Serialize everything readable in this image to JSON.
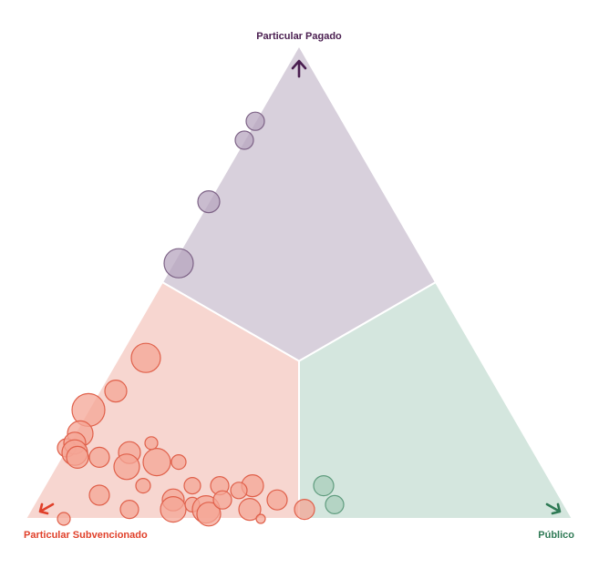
{
  "chart_data": {
    "type": "ternary-bubble",
    "title": "",
    "axes": {
      "top": {
        "label": "Particular Pagado",
        "color": "#4a1e50",
        "arrow_icon": "arrow-up-icon"
      },
      "left": {
        "label": "Particular Subvencionado",
        "color": "#e0402a",
        "arrow_icon": "arrow-down-left-icon"
      },
      "right": {
        "label": "Público",
        "color": "#2f7a55",
        "arrow_icon": "arrow-down-right-icon"
      }
    },
    "regions": [
      {
        "name": "Particular Pagado",
        "fill": "#d8d0dc"
      },
      {
        "name": "Particular Subvencionado",
        "fill": "#f7d6d0"
      },
      {
        "name": "Público",
        "fill": "#d4e6de"
      }
    ],
    "series": [
      {
        "group": "Particular Pagado",
        "fill": "#b7a6bf",
        "stroke": "#7d6286",
        "points": [
          {
            "pagado": 0.84,
            "subvencionado": 0.16,
            "publico": 0.0,
            "r": 10
          },
          {
            "pagado": 0.8,
            "subvencionado": 0.2,
            "publico": 0.0,
            "r": 10
          },
          {
            "pagado": 0.67,
            "subvencionado": 0.33,
            "publico": 0.0,
            "r": 12
          },
          {
            "pagado": 0.54,
            "subvencionado": 0.45,
            "publico": 0.01,
            "r": 16
          }
        ]
      },
      {
        "group": "Particular Subvencionado",
        "fill": "#f4a696",
        "stroke": "#e0604a",
        "points": [
          {
            "pagado": 0.34,
            "subvencionado": 0.61,
            "publico": 0.05,
            "r": 16
          },
          {
            "pagado": 0.27,
            "subvencionado": 0.7,
            "publico": 0.03,
            "r": 12
          },
          {
            "pagado": 0.23,
            "subvencionado": 0.77,
            "publico": 0.0,
            "r": 18
          },
          {
            "pagado": 0.18,
            "subvencionado": 0.81,
            "publico": 0.01,
            "r": 14
          },
          {
            "pagado": 0.15,
            "subvencionado": 0.85,
            "publico": 0.0,
            "r": 10
          },
          {
            "pagado": 0.16,
            "subvencionado": 0.83,
            "publico": 0.01,
            "r": 12
          },
          {
            "pagado": 0.14,
            "subvencionado": 0.84,
            "publico": 0.02,
            "r": 14
          },
          {
            "pagado": 0.13,
            "subvencionado": 0.84,
            "publico": 0.03,
            "r": 12
          },
          {
            "pagado": 0.13,
            "subvencionado": 0.8,
            "publico": 0.07,
            "r": 11
          },
          {
            "pagado": 0.14,
            "subvencionado": 0.74,
            "publico": 0.12,
            "r": 12
          },
          {
            "pagado": 0.11,
            "subvencionado": 0.76,
            "publico": 0.13,
            "r": 14
          },
          {
            "pagado": 0.12,
            "subvencionado": 0.7,
            "publico": 0.18,
            "r": 15
          },
          {
            "pagado": 0.16,
            "subvencionado": 0.69,
            "publico": 0.15,
            "r": 7
          },
          {
            "pagado": 0.12,
            "subvencionado": 0.66,
            "publico": 0.22,
            "r": 8
          },
          {
            "pagado": 0.07,
            "subvencionado": 0.75,
            "publico": 0.18,
            "r": 8
          },
          {
            "pagado": 0.07,
            "subvencionado": 0.66,
            "publico": 0.27,
            "r": 9
          },
          {
            "pagado": 0.07,
            "subvencionado": 0.55,
            "publico": 0.38,
            "r": 12
          },
          {
            "pagado": 0.07,
            "subvencionado": 0.61,
            "publico": 0.32,
            "r": 10
          },
          {
            "pagado": 0.06,
            "subvencionado": 0.58,
            "publico": 0.36,
            "r": 9
          },
          {
            "pagado": 0.05,
            "subvencionado": 0.84,
            "publico": 0.11,
            "r": 11
          },
          {
            "pagado": 0.02,
            "subvencionado": 0.8,
            "publico": 0.18,
            "r": 10
          },
          {
            "pagado": 0.04,
            "subvencionado": 0.71,
            "publico": 0.25,
            "r": 12
          },
          {
            "pagado": 0.02,
            "subvencionado": 0.72,
            "publico": 0.26,
            "r": 14
          },
          {
            "pagado": 0.03,
            "subvencionado": 0.68,
            "publico": 0.29,
            "r": 8
          },
          {
            "pagado": 0.02,
            "subvencionado": 0.66,
            "publico": 0.32,
            "r": 15
          },
          {
            "pagado": 0.01,
            "subvencionado": 0.66,
            "publico": 0.33,
            "r": 13
          },
          {
            "pagado": 0.04,
            "subvencionado": 0.62,
            "publico": 0.34,
            "r": 10
          },
          {
            "pagado": 0.02,
            "subvencionado": 0.58,
            "publico": 0.4,
            "r": 12
          },
          {
            "pagado": 0.04,
            "subvencionado": 0.52,
            "publico": 0.44,
            "r": 11
          },
          {
            "pagado": 0.02,
            "subvencionado": 0.48,
            "publico": 0.5,
            "r": 11
          },
          {
            "pagado": 0.0,
            "subvencionado": 0.57,
            "publico": 0.43,
            "r": 5
          },
          {
            "pagado": 0.0,
            "subvencionado": 0.93,
            "publico": 0.07,
            "r": 7
          }
        ]
      },
      {
        "group": "Público",
        "fill": "#a9cdbb",
        "stroke": "#5f9c7e",
        "points": [
          {
            "pagado": 0.07,
            "subvencionado": 0.42,
            "publico": 0.51,
            "r": 11
          },
          {
            "pagado": 0.03,
            "subvencionado": 0.42,
            "publico": 0.55,
            "r": 10
          }
        ]
      }
    ]
  }
}
